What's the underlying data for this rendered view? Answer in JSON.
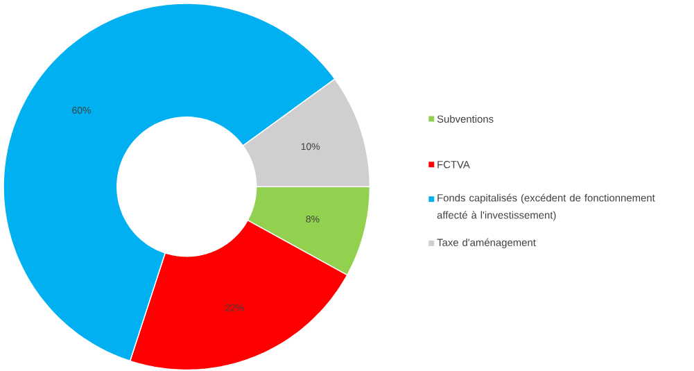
{
  "chart_data": {
    "type": "donut",
    "categories": [
      "Subventions",
      "FCTVA",
      "Fonds capitalisés (excédent de fonctionnement affecté à l'investissement)",
      "Taxe d'aménagement"
    ],
    "values": [
      8,
      22,
      60,
      10
    ],
    "colors": [
      "#92d050",
      "#ff0000",
      "#00b0f0",
      "#d0cece"
    ],
    "value_labels": [
      "8%",
      "22%",
      "60%",
      "10%"
    ],
    "legend": "right"
  }
}
